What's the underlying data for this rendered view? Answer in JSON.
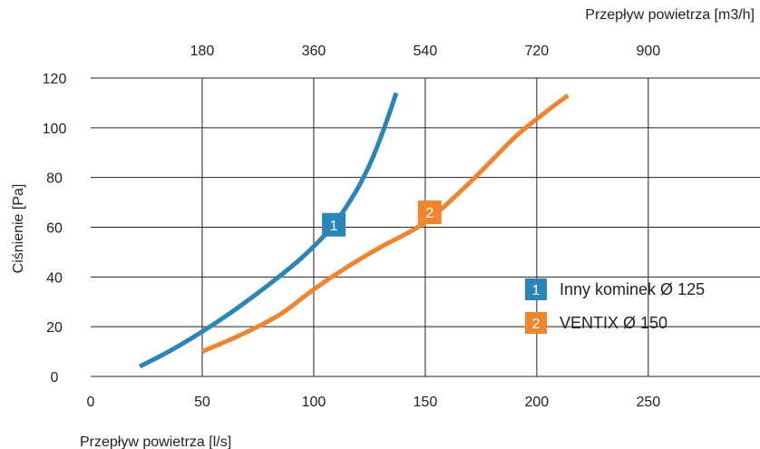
{
  "chart_data": {
    "type": "line",
    "xlabel": "Przepływ powietrza [l/s]",
    "x2label": "Przepływ powietrza [m3/h]",
    "ylabel": "Ciśnienie [Pa]",
    "xlim": [
      0,
      300
    ],
    "ylim": [
      0,
      120
    ],
    "x_ticks": [
      "0",
      "50",
      "100",
      "150",
      "200",
      "250"
    ],
    "x2_ticks": [
      "180",
      "360",
      "540",
      "720",
      "900"
    ],
    "y_ticks": [
      "0",
      "20",
      "40",
      "60",
      "80",
      "100",
      "120"
    ],
    "grid": true,
    "legend_position": "right",
    "series": [
      {
        "name": "Inny kominek Ø 125",
        "badge": "1",
        "color": "#2a86b8",
        "x": [
          22,
          35,
          50,
          65,
          80,
          95,
          108,
          118,
          125,
          130,
          134,
          137
        ],
        "y": [
          4,
          10,
          18,
          27,
          37,
          48,
          60,
          73,
          85,
          96,
          106,
          114
        ],
        "badge_at": {
          "x": 109,
          "y": 61
        }
      },
      {
        "name": "VENTIX Ø 150",
        "badge": "2",
        "color": "#f0852d",
        "x": [
          50,
          68,
          85,
          100,
          115,
          130,
          150,
          170,
          190,
          205,
          214
        ],
        "y": [
          10,
          17,
          25,
          35,
          44,
          52,
          62,
          78,
          96,
          107,
          113
        ],
        "badge_at": {
          "x": 152,
          "y": 66
        }
      }
    ]
  }
}
